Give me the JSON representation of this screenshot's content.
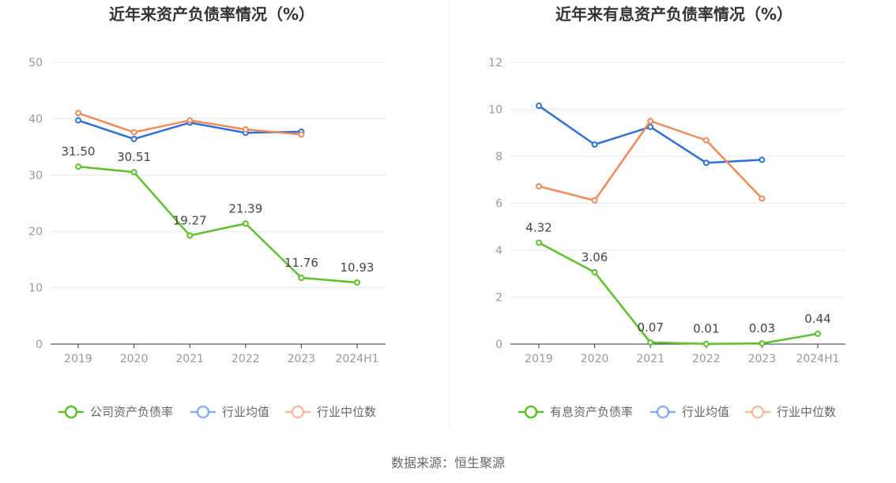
{
  "source": "数据来源：恒生聚源",
  "colors": {
    "company": "#5cc12b",
    "industry_avg": "#2f6fd8",
    "industry_median": "#ef8a5a",
    "grid": "#e6e9f0",
    "axis": "#333333",
    "divider": "#eeeeee"
  },
  "chart_data": [
    {
      "type": "line",
      "title": "近年来资产负债率情况（%）",
      "categories": [
        "2019",
        "2020",
        "2021",
        "2022",
        "2023",
        "2024H1"
      ],
      "ylim": [
        0,
        50
      ],
      "yticks": [
        0,
        10,
        20,
        30,
        40,
        50
      ],
      "grid": true,
      "legend_position": "bottom",
      "series": [
        {
          "name": "公司资产负债率",
          "key": "company",
          "values": [
            31.5,
            30.51,
            19.27,
            21.39,
            11.76,
            10.93
          ],
          "labels": [
            "31.50",
            "30.51",
            "19.27",
            "21.39",
            "11.76",
            "10.93"
          ]
        },
        {
          "name": "行业均值",
          "key": "industry_avg",
          "values": [
            39.7,
            36.4,
            39.3,
            37.5,
            37.7,
            null
          ]
        },
        {
          "name": "行业中位数",
          "key": "industry_median",
          "values": [
            41.0,
            37.6,
            39.7,
            38.1,
            37.2,
            null
          ]
        }
      ]
    },
    {
      "type": "line",
      "title": "近年来有息资产负债率情况（%）",
      "categories": [
        "2019",
        "2020",
        "2021",
        "2022",
        "2023",
        "2024H1"
      ],
      "ylim": [
        0,
        12
      ],
      "yticks": [
        0,
        2,
        4,
        6,
        8,
        10,
        12
      ],
      "grid": true,
      "legend_position": "bottom",
      "series": [
        {
          "name": "有息资产负债率",
          "key": "company",
          "values": [
            4.32,
            3.06,
            0.07,
            0.01,
            0.03,
            0.44
          ],
          "labels": [
            "4.32",
            "3.06",
            "0.07",
            "0.01",
            "0.03",
            "0.44"
          ]
        },
        {
          "name": "行业均值",
          "key": "industry_avg",
          "values": [
            10.15,
            8.5,
            9.25,
            7.72,
            7.85,
            null
          ]
        },
        {
          "name": "行业中位数",
          "key": "industry_median",
          "values": [
            6.72,
            6.12,
            9.5,
            8.68,
            6.2,
            null
          ]
        }
      ]
    }
  ]
}
